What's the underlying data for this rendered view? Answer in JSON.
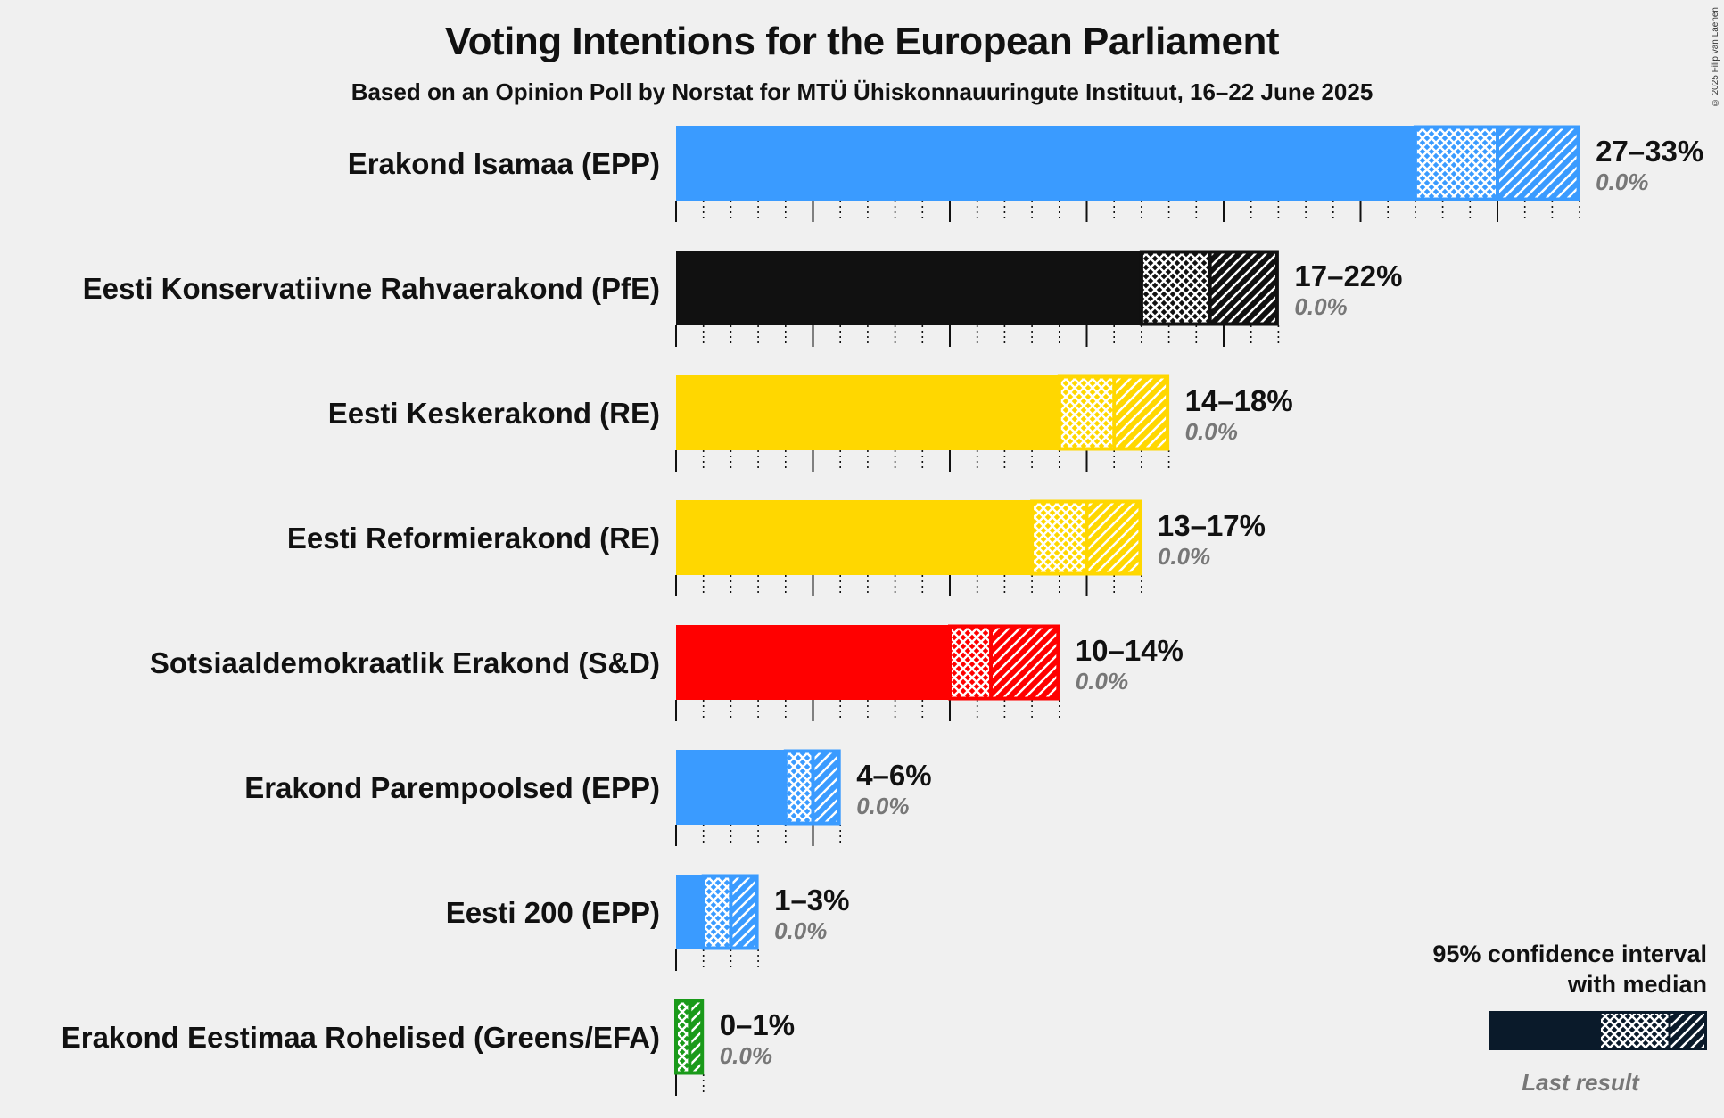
{
  "title": "Voting Intentions for the European Parliament",
  "subtitle": "Based on an Opinion Poll by Norstat for MTÜ Ühiskonnauuringute Instituut, 16–22 June 2025",
  "copyright": "© 2025 Filip van Laenen",
  "legend": {
    "title_line1": "95% confidence interval",
    "title_line2": "with median",
    "last_result": "Last result"
  },
  "chart_data": {
    "type": "bar",
    "orientation": "horizontal",
    "title": "Voting Intentions for the European Parliament",
    "subtitle": "Based on an Opinion Poll by Norstat for MTÜ Ühiskonnauuringute Instituut, 16–22 June 2025",
    "xlim": [
      0,
      33
    ],
    "grid": true,
    "legend_position": "bottom-right",
    "parties": [
      {
        "name": "Erakond Isamaa (EPP)",
        "color": "#3a9bff",
        "ci_low": 27,
        "median": 30,
        "ci_high": 33,
        "range_label": "27–33%",
        "last_result": "0.0%"
      },
      {
        "name": "Eesti Konservatiivne Rahvaerakond (PfE)",
        "color": "#111111",
        "ci_low": 17,
        "median": 19.5,
        "ci_high": 22,
        "range_label": "17–22%",
        "last_result": "0.0%"
      },
      {
        "name": "Eesti Keskerakond (RE)",
        "color": "#ffd700",
        "ci_low": 14,
        "median": 16,
        "ci_high": 18,
        "range_label": "14–18%",
        "last_result": "0.0%"
      },
      {
        "name": "Eesti Reformierakond (RE)",
        "color": "#ffd700",
        "ci_low": 13,
        "median": 15,
        "ci_high": 17,
        "range_label": "13–17%",
        "last_result": "0.0%"
      },
      {
        "name": "Sotsiaaldemokraatlik Erakond (S&D)",
        "color": "#ff0000",
        "ci_low": 10,
        "median": 11.5,
        "ci_high": 14,
        "range_label": "10–14%",
        "last_result": "0.0%"
      },
      {
        "name": "Erakond Parempoolsed (EPP)",
        "color": "#3a9bff",
        "ci_low": 4,
        "median": 5,
        "ci_high": 6,
        "range_label": "4–6%",
        "last_result": "0.0%"
      },
      {
        "name": "Eesti 200 (EPP)",
        "color": "#3a9bff",
        "ci_low": 1,
        "median": 2,
        "ci_high": 3,
        "range_label": "1–3%",
        "last_result": "0.0%"
      },
      {
        "name": "Erakond Eestimaa Rohelised (Greens/EFA)",
        "color": "#1a9a1a",
        "ci_low": 0,
        "median": 0.5,
        "ci_high": 1,
        "range_label": "0–1%",
        "last_result": "0.0%"
      }
    ]
  }
}
